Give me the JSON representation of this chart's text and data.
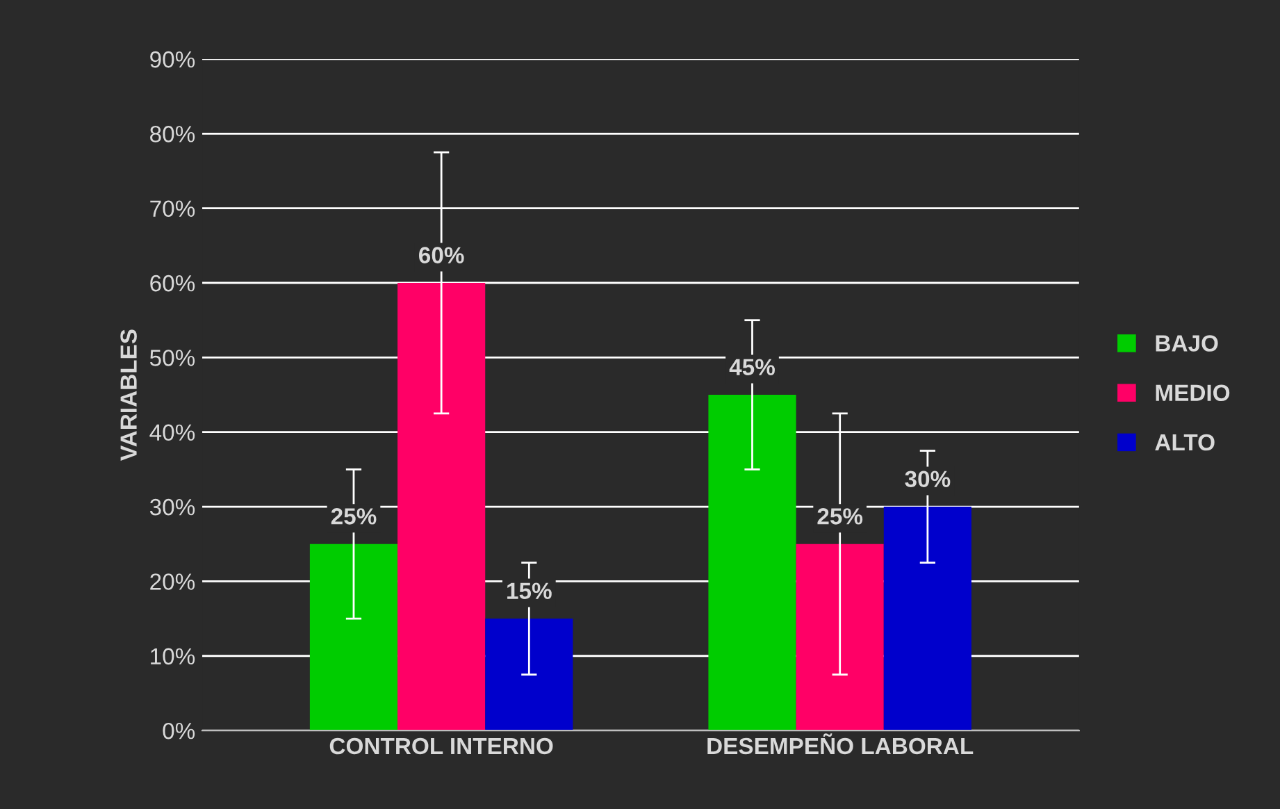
{
  "chart_data": {
    "type": "bar",
    "ylabel": "VARIABLES",
    "categories": [
      "CONTROL INTERNO",
      "DESEMPEÑO LABORAL"
    ],
    "series": [
      {
        "name": "BAJO",
        "color": "#00cc00",
        "values": [
          25,
          45
        ],
        "errors": [
          10,
          10
        ],
        "value_labels": [
          "25%",
          "45%"
        ]
      },
      {
        "name": "MEDIO",
        "color": "#ff0066",
        "values": [
          60,
          25
        ],
        "errors": [
          17.5,
          17.5
        ],
        "value_labels": [
          "60%",
          "25%"
        ]
      },
      {
        "name": "ALTO",
        "color": "#0000cc",
        "values": [
          15,
          30
        ],
        "errors": [
          7.5,
          7.5
        ],
        "value_labels": [
          "15%",
          "30%"
        ]
      }
    ],
    "ylim": [
      0,
      90
    ],
    "yticks": [
      {
        "value": 0,
        "label": "0%"
      },
      {
        "value": 10,
        "label": "10%"
      },
      {
        "value": 20,
        "label": "20%"
      },
      {
        "value": 30,
        "label": "30%"
      },
      {
        "value": 40,
        "label": "40%"
      },
      {
        "value": 50,
        "label": "50%"
      },
      {
        "value": 60,
        "label": "60%"
      },
      {
        "value": 70,
        "label": "70%"
      },
      {
        "value": 80,
        "label": "80%"
      },
      {
        "value": 90,
        "label": "90%"
      }
    ],
    "grid": "y",
    "legend": "right"
  }
}
